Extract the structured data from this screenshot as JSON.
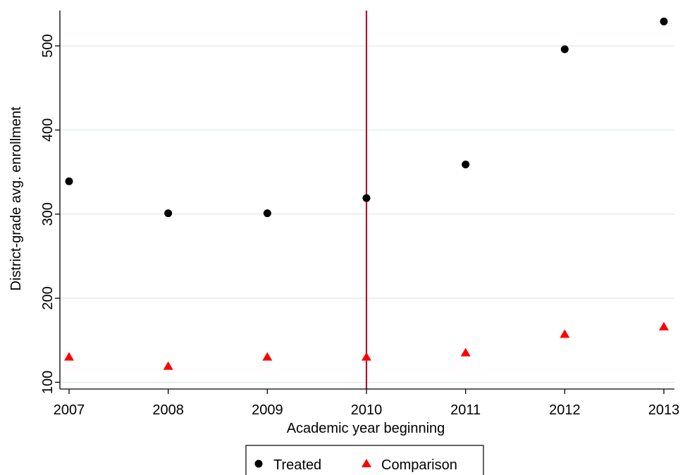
{
  "chart_data": {
    "type": "scatter",
    "title": "",
    "xlabel": "Academic year beginning",
    "ylabel": "District-grade avg. enrollment",
    "xlim": [
      2007,
      2013
    ],
    "ylim": [
      92,
      542
    ],
    "x_ticks": [
      2007,
      2008,
      2009,
      2010,
      2011,
      2012,
      2013
    ],
    "y_ticks": [
      100,
      200,
      300,
      400,
      500
    ],
    "grid": "horizontal",
    "reference_line": {
      "x": 2010,
      "color": "#b0143c"
    },
    "series": [
      {
        "name": "Treated",
        "marker": "circle",
        "color": "#000000",
        "x": [
          2007,
          2008,
          2009,
          2010,
          2011,
          2012,
          2013
        ],
        "y": [
          339,
          301,
          301,
          319,
          359,
          496,
          529
        ]
      },
      {
        "name": "Comparison",
        "marker": "triangle",
        "color": "#ff0000",
        "x": [
          2007,
          2008,
          2009,
          2010,
          2011,
          2012,
          2013
        ],
        "y": [
          130,
          119,
          130,
          130,
          135,
          157,
          166
        ]
      }
    ],
    "legend": {
      "position": "bottom-center"
    }
  }
}
